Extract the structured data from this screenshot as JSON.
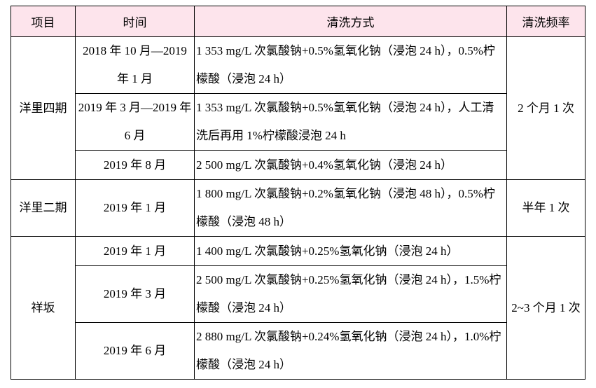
{
  "table": {
    "headers": [
      "项目",
      "时间",
      "清洗方式",
      "清洗频率"
    ],
    "groups": [
      {
        "project": "洋里四期",
        "frequency": "2 个月 1 次",
        "rows": [
          {
            "time": "2018 年 10 月—2019 年 1 月",
            "method": "1 353 mg/L 次氯酸钠+0.5%氢氧化钠（浸泡 24 h），0.5%柠檬酸（浸泡 24 h）"
          },
          {
            "time": "2019 年 3 月—2019 年 6 月",
            "method": "1 353 mg/L 次氯酸钠+0.5%氢氧化钠（浸泡 24 h），人工清洗后再用 1%柠檬酸浸泡 24 h"
          },
          {
            "time": "2019 年 8 月",
            "method": "2 500 mg/L 次氯酸钠+0.4%氢氧化钠（浸泡 24 h）"
          }
        ]
      },
      {
        "project": "洋里二期",
        "frequency": "半年 1 次",
        "rows": [
          {
            "time": "2019 年 1 月",
            "method": "1 800 mg/L 次氯酸钠+0.2%氢氧化钠（浸泡 48 h），0.5%柠檬酸（浸泡 48 h）"
          }
        ]
      },
      {
        "project": "祥坂",
        "frequency": "2~3 个月 1 次",
        "rows": [
          {
            "time": "2019 年 1 月",
            "method": "1 400 mg/L 次氯酸钠+0.25%氢氧化钠（浸泡 24 h）"
          },
          {
            "time": "2019 年 3 月",
            "method": "2 500 mg/L 次氯酸钠+0.25%氢氧化钠（浸泡 24 h），1.5%柠檬酸（浸泡 24 h）"
          },
          {
            "time": "2019 年 6 月",
            "method": "2 880 mg/L 次氯酸钠+0.24%氢氧化钠（浸泡 24 h），1.0%柠檬酸（浸泡 24 h）"
          }
        ]
      }
    ]
  }
}
